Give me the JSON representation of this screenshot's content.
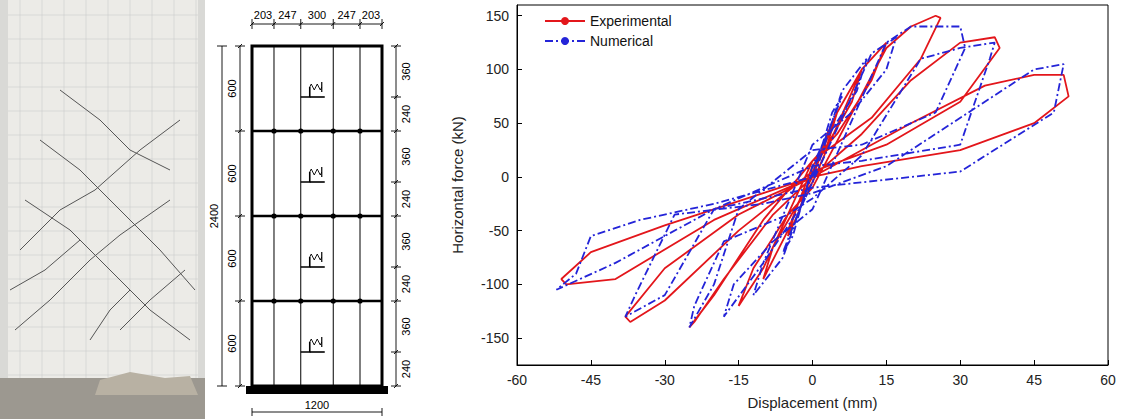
{
  "chart_data": {
    "type": "line",
    "xlabel": "Displacement (mm)",
    "ylabel": "Horizontal force (kN)",
    "xlim": [
      -60,
      60
    ],
    "xticks": [
      -60,
      -45,
      -30,
      -15,
      0,
      15,
      30,
      45,
      60
    ],
    "ylim": [
      -175,
      160
    ],
    "yticks": [
      -150,
      -100,
      -50,
      0,
      50,
      100,
      150
    ],
    "grid": false,
    "legend": "upper left",
    "series": [
      {
        "name": "Experimental",
        "color": "#e3161b",
        "line_style": "solid",
        "marker": "none",
        "x": [
          0,
          3,
          5,
          3,
          0,
          -3,
          -5,
          -3,
          0,
          5,
          10,
          8,
          3,
          0,
          -5,
          -10,
          -8,
          -3,
          0,
          10,
          15,
          12,
          5,
          0,
          -10,
          -15,
          -12,
          -5,
          0,
          15,
          20,
          25,
          26,
          22,
          12,
          3,
          0,
          -10,
          -20,
          -25,
          -24,
          -18,
          -8,
          0,
          10,
          20,
          30,
          37,
          38,
          30,
          15,
          0,
          -15,
          -30,
          -37,
          -38,
          -30,
          -15,
          0,
          20,
          35,
          45,
          51,
          52,
          45,
          30,
          10,
          0,
          -20,
          -40,
          -50,
          -51,
          -45,
          -30,
          -10,
          0
        ],
        "values": [
          0,
          40,
          60,
          30,
          5,
          -35,
          -55,
          -25,
          0,
          60,
          100,
          70,
          30,
          10,
          -50,
          -95,
          -65,
          -25,
          -5,
          100,
          125,
          90,
          40,
          15,
          -85,
          -120,
          -85,
          -35,
          -10,
          120,
          140,
          150,
          148,
          110,
          55,
          25,
          15,
          -40,
          -110,
          -140,
          -135,
          -95,
          -35,
          0,
          40,
          90,
          125,
          130,
          120,
          70,
          30,
          5,
          -50,
          -115,
          -135,
          -130,
          -85,
          -35,
          0,
          50,
          85,
          95,
          95,
          75,
          50,
          25,
          10,
          0,
          -40,
          -95,
          -100,
          -95,
          -70,
          -45,
          -15,
          0
        ]
      },
      {
        "name": "Numerical",
        "color": "#2424d8",
        "line_style": "dashdot",
        "marker": "none",
        "x": [
          0,
          4,
          6,
          3,
          0,
          -4,
          -6,
          -3,
          0,
          6,
          11,
          9,
          2,
          -6,
          -12,
          -10,
          -2,
          12,
          17,
          15,
          8,
          0,
          -10,
          -18,
          -16,
          -8,
          0,
          15,
          20,
          30,
          31,
          25,
          10,
          0,
          -15,
          -20,
          -25,
          -24,
          -18,
          -5,
          0,
          10,
          22,
          30,
          37,
          36,
          30,
          10,
          0,
          -20,
          -30,
          -38,
          -36,
          -28,
          -10,
          0,
          15,
          35,
          45,
          51,
          49,
          30,
          0,
          -20,
          -40,
          -52,
          -48,
          -45,
          -35,
          -20,
          0
        ],
        "values": [
          0,
          60,
          75,
          40,
          10,
          -55,
          -70,
          -35,
          -5,
          80,
          110,
          80,
          30,
          -75,
          -110,
          -80,
          -25,
          115,
          130,
          100,
          60,
          30,
          -80,
          -130,
          -100,
          -60,
          -30,
          125,
          140,
          140,
          120,
          60,
          30,
          25,
          -30,
          -100,
          -140,
          -120,
          -60,
          -35,
          -20,
          20,
          110,
          120,
          125,
          110,
          30,
          15,
          10,
          -30,
          -110,
          -130,
          -110,
          -35,
          -25,
          -15,
          10,
          70,
          100,
          105,
          60,
          5,
          -10,
          -30,
          -80,
          -105,
          -90,
          -55,
          -40,
          -25,
          0
        ]
      }
    ]
  },
  "diagram": {
    "top_dimensions": [
      203,
      247,
      300,
      247,
      203
    ],
    "total_width": 1200,
    "left_dimensions": [
      600,
      600,
      600,
      600
    ],
    "total_height": 2400,
    "right_dimensions": [
      360,
      240,
      360,
      240,
      360,
      240,
      360,
      240
    ]
  }
}
